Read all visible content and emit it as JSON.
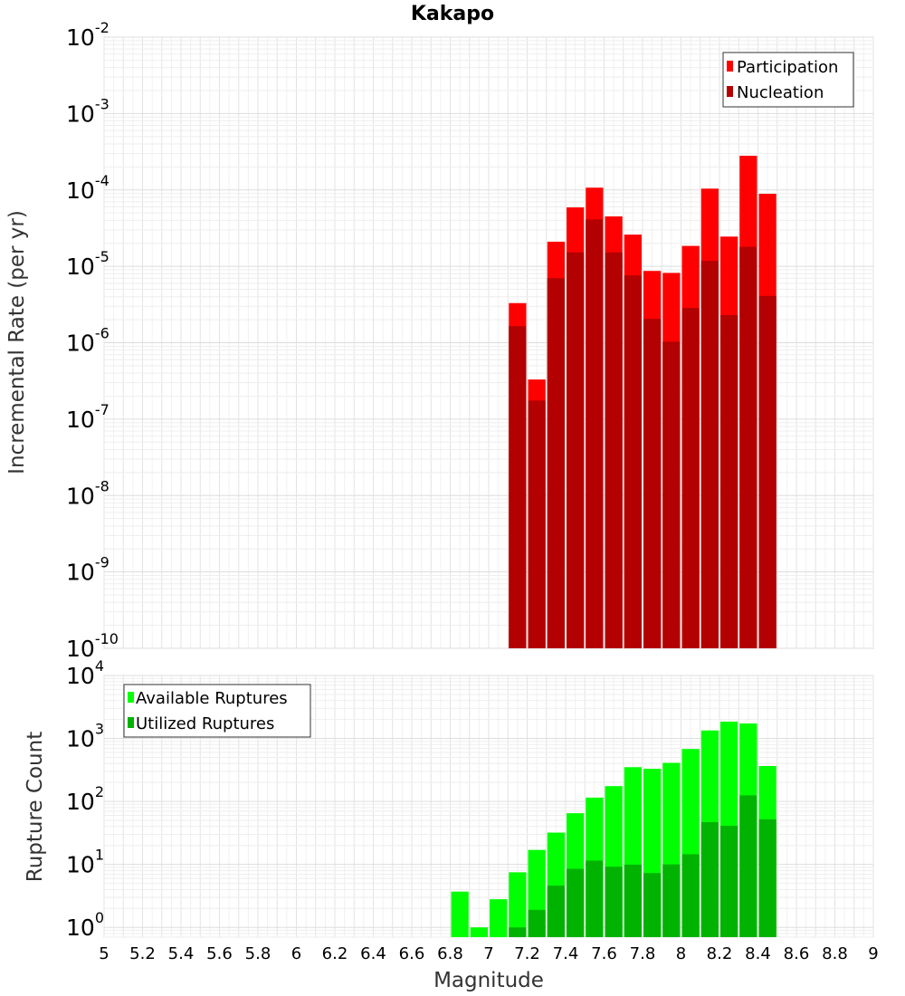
{
  "chart_data": [
    {
      "type": "bar",
      "title": "Kakapo",
      "xlabel": "",
      "ylabel": "Incremental Rate (per yr)",
      "y_scale": "log",
      "ylim": [
        1e-10,
        0.01
      ],
      "xlim": [
        5,
        9
      ],
      "y_ticks": [
        {
          "base": "10",
          "exp": "-10",
          "value": 1e-10
        },
        {
          "base": "10",
          "exp": "-9",
          "value": 1e-09
        },
        {
          "base": "10",
          "exp": "-8",
          "value": 1e-08
        },
        {
          "base": "10",
          "exp": "-7",
          "value": 1e-07
        },
        {
          "base": "10",
          "exp": "-6",
          "value": 1e-06
        },
        {
          "base": "10",
          "exp": "-5",
          "value": 1e-05
        },
        {
          "base": "10",
          "exp": "-4",
          "value": 0.0001
        },
        {
          "base": "10",
          "exp": "-3",
          "value": 0.001
        },
        {
          "base": "10",
          "exp": "-2",
          "value": 0.01
        }
      ],
      "legend": {
        "position": "top-right"
      },
      "grid": true,
      "bar_width": 0.1,
      "x": [
        7.15,
        7.25,
        7.35,
        7.45,
        7.55,
        7.65,
        7.75,
        7.85,
        7.95,
        8.05,
        8.15,
        8.25,
        8.35,
        8.45
      ],
      "series": [
        {
          "name": "Participation",
          "color": "#ff0000",
          "values": [
            3.3e-06,
            3.3e-07,
            2.1e-05,
            5.9e-05,
            0.000107,
            4.5e-05,
            2.6e-05,
            8.7e-06,
            8.2e-06,
            1.85e-05,
            0.000104,
            2.45e-05,
            0.00028,
            8.9e-05
          ]
        },
        {
          "name": "Nucleation",
          "color": "#b30000",
          "values": [
            1.65e-06,
            1.75e-07,
            7e-06,
            1.52e-05,
            4.1e-05,
            1.52e-05,
            7.6e-06,
            2.05e-06,
            1.03e-06,
            2.85e-06,
            1.18e-05,
            2.3e-06,
            1.8e-05,
            4.1e-06
          ]
        }
      ]
    },
    {
      "type": "bar",
      "title": "",
      "xlabel": "Magnitude",
      "ylabel": "Rupture Count",
      "y_scale": "log",
      "ylim": [
        0.7,
        10000
      ],
      "xlim": [
        5,
        9
      ],
      "x_tick_labels": [
        "5",
        "5.2",
        "5.4",
        "5.6",
        "5.8",
        "6",
        "6.2",
        "6.4",
        "6.6",
        "6.8",
        "7",
        "7.2",
        "7.4",
        "7.6",
        "7.8",
        "8",
        "8.2",
        "8.4",
        "8.6",
        "8.8",
        "9"
      ],
      "y_ticks": [
        {
          "base": "10",
          "exp": "0",
          "value": 1
        },
        {
          "base": "10",
          "exp": "1",
          "value": 10
        },
        {
          "base": "10",
          "exp": "2",
          "value": 100
        },
        {
          "base": "10",
          "exp": "3",
          "value": 1000
        },
        {
          "base": "10",
          "exp": "4",
          "value": 10000
        }
      ],
      "legend": {
        "position": "top-left"
      },
      "grid": true,
      "bar_width": 0.1,
      "x": [
        6.85,
        6.95,
        7.05,
        7.15,
        7.25,
        7.35,
        7.45,
        7.55,
        7.65,
        7.75,
        7.85,
        7.95,
        8.05,
        8.15,
        8.25,
        8.35,
        8.45
      ],
      "series": [
        {
          "name": "Available Ruptures",
          "color": "#00ff00",
          "values": [
            3.7,
            1.0,
            2.8,
            7.5,
            17,
            32,
            65,
            115,
            175,
            350,
            330,
            410,
            680,
            1340,
            1850,
            1730,
            365
          ]
        },
        {
          "name": "Utilized Ruptures",
          "color": "#00b300",
          "values": [
            null,
            null,
            null,
            1.0,
            1.9,
            4.6,
            8.5,
            11.5,
            9.2,
            9.9,
            7.3,
            10.0,
            14.5,
            47,
            41,
            125,
            52
          ]
        }
      ]
    }
  ]
}
